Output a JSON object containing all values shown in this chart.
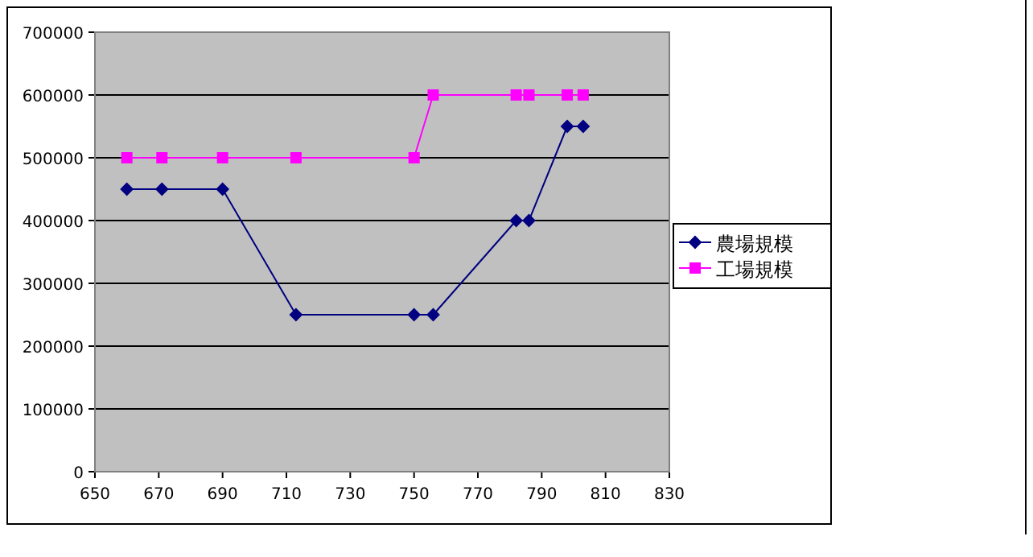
{
  "chart_data": {
    "type": "line",
    "x": [
      660,
      671,
      690,
      713,
      750,
      756,
      782,
      786,
      798,
      803
    ],
    "series": [
      {
        "name": "農場規模",
        "color": "#000080",
        "marker": "diamond",
        "values": [
          450000,
          450000,
          450000,
          250000,
          250000,
          250000,
          400000,
          400000,
          550000,
          550000
        ]
      },
      {
        "name": "工場規模",
        "color": "#ff00ff",
        "marker": "square",
        "values": [
          500000,
          500000,
          500000,
          500000,
          500000,
          600000,
          600000,
          600000,
          600000,
          600000
        ]
      }
    ],
    "xlim": [
      650,
      830
    ],
    "xticks": [
      650,
      670,
      690,
      710,
      730,
      750,
      770,
      790,
      810,
      830
    ],
    "ylim": [
      0,
      700000
    ],
    "yticks": [
      0,
      100000,
      200000,
      300000,
      400000,
      500000,
      600000,
      700000
    ],
    "grid": "y",
    "legend": "right"
  }
}
